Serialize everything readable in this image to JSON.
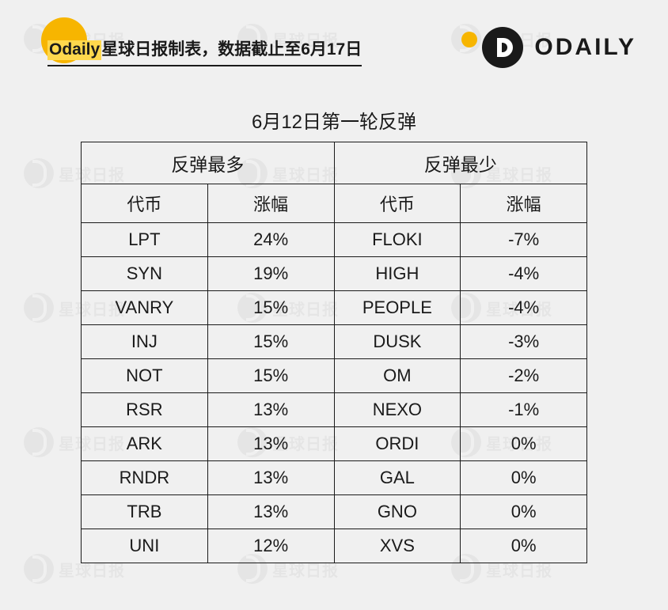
{
  "header": {
    "title_highlight": "Odaily",
    "title_rest": "星球日报制表，数据截止至6月17日",
    "brand_text": "ODAILY"
  },
  "table": {
    "title": "6月12日第一轮反弹",
    "group_left": "反弹最多",
    "group_right": "反弹最少",
    "col_token": "代币",
    "col_change": "涨幅",
    "rows": [
      {
        "lt": "LPT",
        "lc": "24%",
        "rt": "FLOKI",
        "rc": "-7%"
      },
      {
        "lt": "SYN",
        "lc": "19%",
        "rt": "HIGH",
        "rc": "-4%"
      },
      {
        "lt": "VANRY",
        "lc": "15%",
        "rt": "PEOPLE",
        "rc": "-4%"
      },
      {
        "lt": "INJ",
        "lc": "15%",
        "rt": "DUSK",
        "rc": "-3%"
      },
      {
        "lt": "NOT",
        "lc": "15%",
        "rt": "OM",
        "rc": "-2%"
      },
      {
        "lt": "RSR",
        "lc": "13%",
        "rt": "NEXO",
        "rc": "-1%"
      },
      {
        "lt": "ARK",
        "lc": "13%",
        "rt": "ORDI",
        "rc": "0%"
      },
      {
        "lt": "RNDR",
        "lc": "13%",
        "rt": "GAL",
        "rc": "0%"
      },
      {
        "lt": "TRB",
        "lc": "13%",
        "rt": "GNO",
        "rc": "0%"
      },
      {
        "lt": "UNI",
        "lc": "12%",
        "rt": "XVS",
        "rc": "0%"
      }
    ]
  },
  "colors": {
    "accent": "#f7b500",
    "highlight": "#ffd84d",
    "text": "#1a1a1a",
    "bg": "#f0f0f0",
    "border": "#1a1a1a"
  }
}
